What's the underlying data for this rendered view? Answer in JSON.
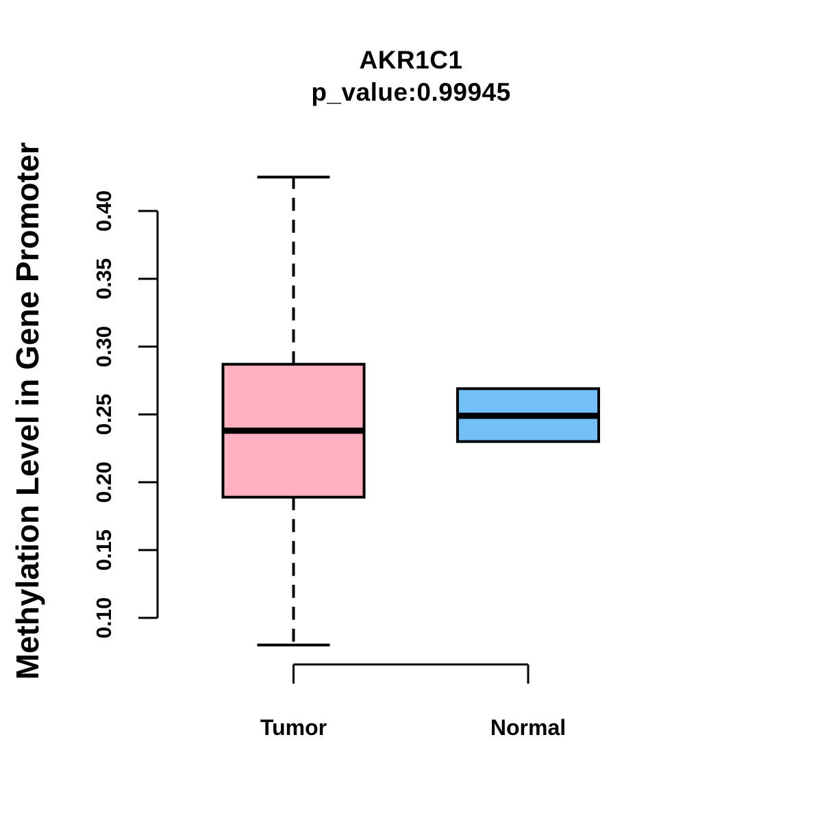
{
  "page": {
    "background_color": "#ffffff",
    "text_color": "#000000"
  },
  "chart_data": {
    "type": "boxplot",
    "title": "AKR1C1",
    "subtitle": "p_value:0.99945",
    "ylabel": "Methylation Level in Gene Promoter",
    "xlabel": "",
    "categories": [
      "Tumor",
      "Normal"
    ],
    "yaxis": {
      "min": 0.1,
      "max": 0.4,
      "tick_step": 0.05,
      "tick_labels": [
        "0.10",
        "0.15",
        "0.20",
        "0.25",
        "0.30",
        "0.35",
        "0.40"
      ]
    },
    "grid": "off",
    "legend": "none",
    "groups": [
      {
        "name": "Tumor",
        "fill_color": "#FFB0C1",
        "whisker_low": 0.08,
        "q1": 0.189,
        "median": 0.238,
        "q3": 0.287,
        "whisker_high": 0.425,
        "whisker_style": "dashed"
      },
      {
        "name": "Normal",
        "fill_color": "#73BFF7",
        "whisker_low": 0.23,
        "q1": 0.23,
        "median": 0.249,
        "q3": 0.269,
        "whisker_high": 0.269,
        "whisker_style": "dashed"
      }
    ],
    "styles": {
      "axis_color": "#000000",
      "box_border_color": "#000000",
      "median_color": "#000000"
    }
  }
}
